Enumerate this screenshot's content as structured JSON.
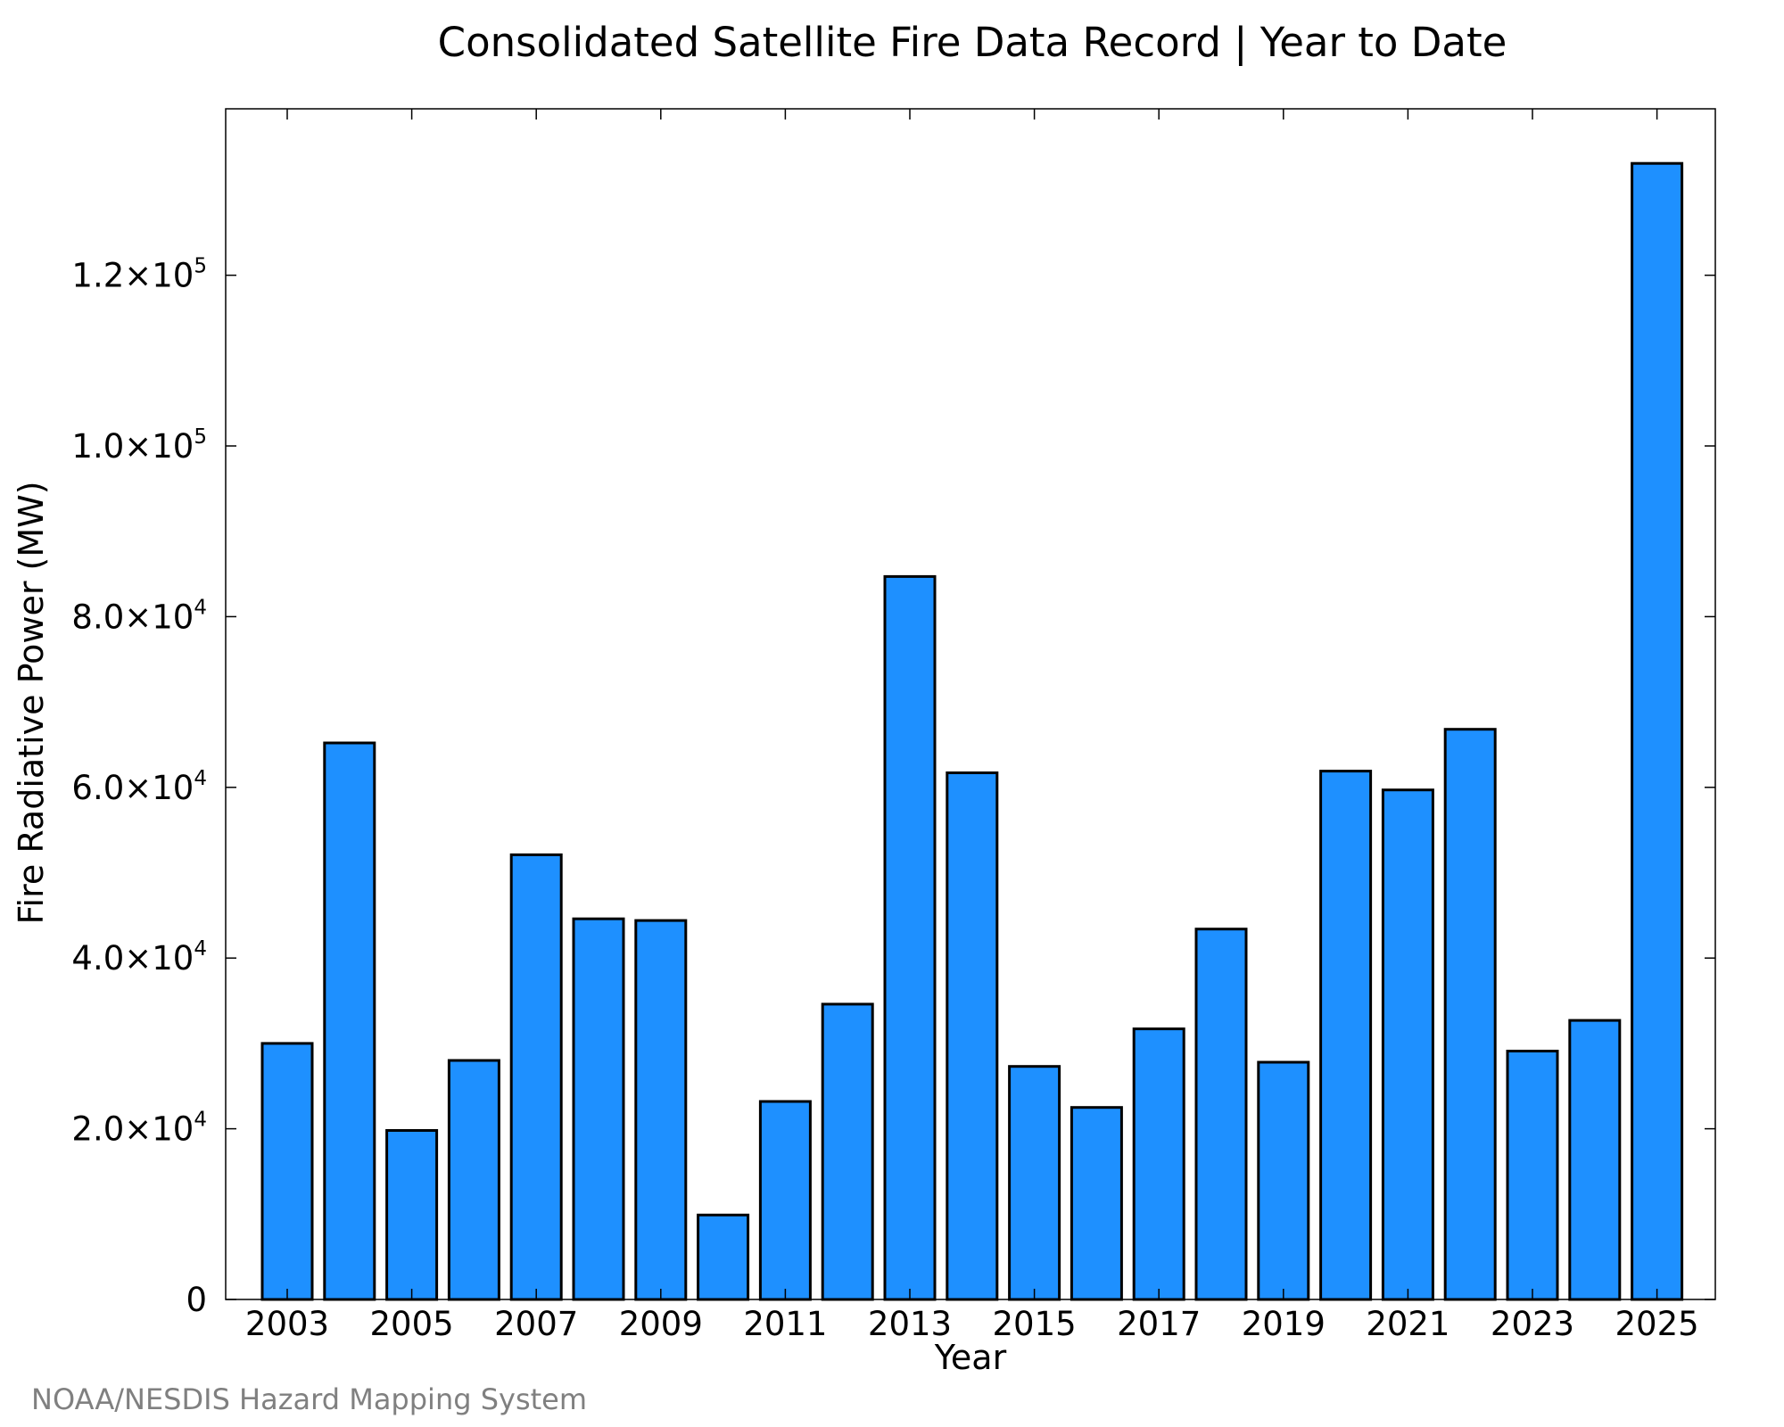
{
  "credit": "NOAA/NESDIS Hazard Mapping System",
  "colors": {
    "bar_fill": "#1e90ff",
    "bar_stroke": "#000000",
    "credit_text": "#808080"
  },
  "chart_data": {
    "type": "bar",
    "title": "Consolidated Satellite Fire Data Record | Year to Date",
    "xlabel": "Year",
    "ylabel": "Fire Radiative Power (MW)",
    "categories": [
      "2003",
      "2004",
      "2005",
      "2006",
      "2007",
      "2008",
      "2009",
      "2010",
      "2011",
      "2012",
      "2013",
      "2014",
      "2015",
      "2016",
      "2017",
      "2018",
      "2019",
      "2020",
      "2021",
      "2022",
      "2023",
      "2024",
      "2025"
    ],
    "values": [
      30000,
      65200,
      19800,
      28000,
      52100,
      44600,
      44400,
      9900,
      23200,
      34600,
      84700,
      61700,
      27300,
      22500,
      31700,
      43400,
      27800,
      61900,
      59700,
      66800,
      29100,
      32700,
      133100
    ],
    "x_tick_labels": [
      "2003",
      "2005",
      "2007",
      "2009",
      "2011",
      "2013",
      "2015",
      "2017",
      "2019",
      "2021",
      "2023",
      "2025"
    ],
    "y_ticks": [
      {
        "value": 0,
        "mantissa": "0",
        "exponent": ""
      },
      {
        "value": 20000,
        "mantissa": "2.0×10",
        "exponent": "4"
      },
      {
        "value": 40000,
        "mantissa": "4.0×10",
        "exponent": "4"
      },
      {
        "value": 60000,
        "mantissa": "6.0×10",
        "exponent": "4"
      },
      {
        "value": 80000,
        "mantissa": "8.0×10",
        "exponent": "4"
      },
      {
        "value": 100000,
        "mantissa": "1.0×10",
        "exponent": "5"
      },
      {
        "value": 120000,
        "mantissa": "1.2×10",
        "exponent": "5"
      }
    ],
    "ylim": [
      0,
      139500
    ],
    "grid": false,
    "legend": "none"
  }
}
